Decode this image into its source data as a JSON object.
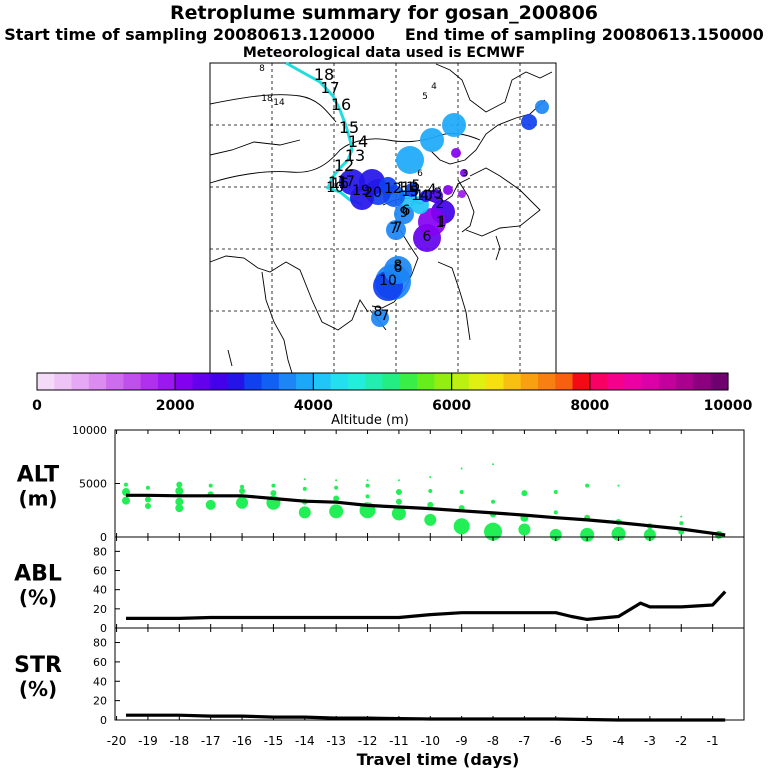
{
  "header": {
    "title": "Retroplume summary for gosan_200806",
    "start_label": "Start time of sampling 20080613.120000",
    "end_label": "End time of sampling 20080613.150000",
    "met_label": "Meteorological data used is ECMWF"
  },
  "colors": {
    "alt_dots": "#22ee55",
    "line": "#000000",
    "track": "#22dddd",
    "scale": [
      "#f4dcf8",
      "#eec4f6",
      "#e6a8f4",
      "#dc8cf0",
      "#ce6cee",
      "#c050ec",
      "#b030ee",
      "#9c18f0",
      "#8400f0",
      "#6400ee",
      "#4400ea",
      "#2414ea",
      "#1040f0",
      "#1060f4",
      "#1c86f6",
      "#1ca8f8",
      "#20c6f8",
      "#22e0f0",
      "#22eedc",
      "#22eeb0",
      "#22ee84",
      "#3aee48",
      "#66ee1c",
      "#92ee10",
      "#bcf010",
      "#e0f010",
      "#f6e010",
      "#f8c010",
      "#f8a010",
      "#f88010",
      "#f86010",
      "#f40a14",
      "#f80064",
      "#f4008c",
      "#ec00a4",
      "#dc00a8",
      "#c4009c",
      "#aa0090",
      "#8c0080",
      "#6e0070"
    ]
  },
  "colorbar": {
    "ticks": [
      "0",
      "2000",
      "4000",
      "6000",
      "8000",
      "10000"
    ],
    "label": "Altitude (m)"
  },
  "map_labels": [
    {
      "t": "8",
      "c": "#22dddd"
    },
    {
      "t": "18",
      "c": "#000"
    },
    {
      "t": "17",
      "c": "#000"
    },
    {
      "t": "16",
      "c": "#000"
    },
    {
      "t": "15",
      "c": "#000"
    },
    {
      "t": "14",
      "c": "#000"
    },
    {
      "t": "13",
      "c": "#000"
    },
    {
      "t": "12",
      "c": "#000"
    },
    {
      "t": "11",
      "c": "#000"
    },
    {
      "t": "10",
      "c": "#000"
    },
    {
      "t": "18",
      "c": "#22dddd"
    },
    {
      "t": "14",
      "c": "#22dddd"
    },
    {
      "t": "4",
      "c": "#22dddd"
    },
    {
      "t": "5",
      "c": "#22dddd"
    },
    {
      "t": "6",
      "c": "#22dddd"
    },
    {
      "t": "3",
      "c": "#22dddd"
    }
  ],
  "plume_labels": [
    "20",
    "19",
    "17",
    "16",
    "15",
    "14",
    "13",
    "12",
    "11",
    "10",
    "9",
    "8",
    "7",
    "6",
    "5",
    "4",
    "3",
    "2",
    "1",
    "6",
    "7",
    "6",
    "1",
    "7",
    "8",
    "10"
  ],
  "chart_data": [
    {
      "type": "line",
      "name": "ALT",
      "ylabel": "ALT",
      "yunit": "(m)",
      "ylim": [
        0,
        10000
      ],
      "yticks": [
        "0",
        "5000",
        "10000"
      ],
      "x": [
        -19.7,
        -19,
        -18,
        -17,
        -16,
        -15,
        -14,
        -13,
        -12,
        -11,
        -10,
        -9,
        -8,
        -7,
        -6,
        -5,
        -4,
        -3,
        -2,
        -1,
        -0.6
      ],
      "values": [
        3900,
        3900,
        3850,
        3850,
        3850,
        3600,
        3350,
        3250,
        2950,
        2800,
        2650,
        2450,
        2250,
        2050,
        1800,
        1600,
        1350,
        1050,
        750,
        350,
        200
      ],
      "scatter": [
        {
          "x": -19.7,
          "y": 4900,
          "r": 2
        },
        {
          "x": -19.7,
          "y": 4200,
          "r": 4
        },
        {
          "x": -19.7,
          "y": 3400,
          "r": 4
        },
        {
          "x": -19,
          "y": 4600,
          "r": 2
        },
        {
          "x": -19,
          "y": 3500,
          "r": 3
        },
        {
          "x": -19,
          "y": 2900,
          "r": 3
        },
        {
          "x": -18,
          "y": 4900,
          "r": 3
        },
        {
          "x": -18,
          "y": 4300,
          "r": 4
        },
        {
          "x": -18,
          "y": 3300,
          "r": 4
        },
        {
          "x": -18,
          "y": 2700,
          "r": 4
        },
        {
          "x": -17,
          "y": 4800,
          "r": 2
        },
        {
          "x": -17,
          "y": 4000,
          "r": 3
        },
        {
          "x": -17,
          "y": 3000,
          "r": 5
        },
        {
          "x": -16,
          "y": 4700,
          "r": 2
        },
        {
          "x": -16,
          "y": 4300,
          "r": 3
        },
        {
          "x": -16,
          "y": 3200,
          "r": 6
        },
        {
          "x": -15,
          "y": 4800,
          "r": 2
        },
        {
          "x": -15,
          "y": 4100,
          "r": 3
        },
        {
          "x": -15,
          "y": 3200,
          "r": 7
        },
        {
          "x": -14,
          "y": 5400,
          "r": 1
        },
        {
          "x": -14,
          "y": 4500,
          "r": 2
        },
        {
          "x": -14,
          "y": 3300,
          "r": 3
        },
        {
          "x": -14,
          "y": 2300,
          "r": 6
        },
        {
          "x": -13,
          "y": 5300,
          "r": 1
        },
        {
          "x": -13,
          "y": 4600,
          "r": 2
        },
        {
          "x": -13,
          "y": 3600,
          "r": 3
        },
        {
          "x": -13,
          "y": 2400,
          "r": 7
        },
        {
          "x": -12,
          "y": 5300,
          "r": 1
        },
        {
          "x": -12,
          "y": 4800,
          "r": 2
        },
        {
          "x": -12,
          "y": 3800,
          "r": 2
        },
        {
          "x": -12,
          "y": 2500,
          "r": 8
        },
        {
          "x": -11,
          "y": 5300,
          "r": 1
        },
        {
          "x": -11,
          "y": 4200,
          "r": 3
        },
        {
          "x": -11,
          "y": 3300,
          "r": 3
        },
        {
          "x": -11,
          "y": 2200,
          "r": 7
        },
        {
          "x": -10,
          "y": 5600,
          "r": 1
        },
        {
          "x": -10,
          "y": 4300,
          "r": 2
        },
        {
          "x": -10,
          "y": 3000,
          "r": 3
        },
        {
          "x": -10,
          "y": 1600,
          "r": 6
        },
        {
          "x": -9,
          "y": 6400,
          "r": 1
        },
        {
          "x": -9,
          "y": 4200,
          "r": 2
        },
        {
          "x": -9,
          "y": 2700,
          "r": 3
        },
        {
          "x": -9,
          "y": 1000,
          "r": 8
        },
        {
          "x": -8,
          "y": 6800,
          "r": 1
        },
        {
          "x": -8,
          "y": 3300,
          "r": 2
        },
        {
          "x": -8,
          "y": 2100,
          "r": 3
        },
        {
          "x": -8,
          "y": 500,
          "r": 9
        },
        {
          "x": -7,
          "y": 4100,
          "r": 3
        },
        {
          "x": -7,
          "y": 1800,
          "r": 4
        },
        {
          "x": -7,
          "y": 700,
          "r": 6
        },
        {
          "x": -6,
          "y": 4200,
          "r": 2
        },
        {
          "x": -6,
          "y": 2300,
          "r": 2
        },
        {
          "x": -6,
          "y": 200,
          "r": 6
        },
        {
          "x": -5,
          "y": 4800,
          "r": 2
        },
        {
          "x": -5,
          "y": 1800,
          "r": 3
        },
        {
          "x": -5,
          "y": 200,
          "r": 7
        },
        {
          "x": -4,
          "y": 4800,
          "r": 1
        },
        {
          "x": -4,
          "y": 1400,
          "r": 3
        },
        {
          "x": -4,
          "y": 300,
          "r": 7
        },
        {
          "x": -3,
          "y": 1000,
          "r": 3
        },
        {
          "x": -3,
          "y": 200,
          "r": 6
        },
        {
          "x": -2,
          "y": 1900,
          "r": 1
        },
        {
          "x": -2,
          "y": 1300,
          "r": 2
        },
        {
          "x": -2,
          "y": 500,
          "r": 3
        },
        {
          "x": -0.8,
          "y": 200,
          "r": 4
        }
      ]
    },
    {
      "type": "line",
      "name": "ABL",
      "ylabel": "ABL",
      "yunit": "(%)",
      "ylim": [
        0,
        95
      ],
      "yticks": [
        "0",
        "20",
        "40",
        "60",
        "80"
      ],
      "x": [
        -19.7,
        -19,
        -18,
        -17,
        -16,
        -15,
        -14,
        -13,
        -12,
        -11,
        -10,
        -9,
        -8,
        -7,
        -6,
        -5.5,
        -5,
        -4,
        -3.3,
        -3,
        -2,
        -1,
        -0.6
      ],
      "values": [
        10,
        10,
        10,
        11,
        11,
        11,
        11,
        11,
        11,
        11,
        14,
        16,
        16,
        16,
        16,
        12,
        9,
        12,
        26,
        22,
        22,
        24,
        38
      ]
    },
    {
      "type": "line",
      "name": "STR",
      "ylabel": "STR",
      "yunit": "(%)",
      "ylim": [
        0,
        95
      ],
      "yticks": [
        "0",
        "20",
        "40",
        "60",
        "80"
      ],
      "x": [
        -19.7,
        -18,
        -17,
        -16,
        -15,
        -14,
        -13,
        -12,
        -10,
        -8,
        -6,
        -4,
        -2,
        -1,
        -0.6
      ],
      "values": [
        5,
        5,
        4,
        4,
        3,
        3,
        2,
        2,
        1,
        1,
        1,
        0,
        0,
        0,
        0
      ]
    }
  ],
  "xaxis": {
    "ticks": [
      -20,
      -19,
      -18,
      -17,
      -16,
      -15,
      -14,
      -13,
      -12,
      -11,
      -10,
      -9,
      -8,
      -7,
      -6,
      -5,
      -4,
      -3,
      -2,
      -1
    ],
    "tick_labels": [
      "-20",
      "-19",
      "-18",
      "-17",
      "-16",
      "-15",
      "-14",
      "-13",
      "-12",
      "-11",
      "-10",
      "-9",
      "-8",
      "-7",
      "-6",
      "-5",
      "-4",
      "-3",
      "-2",
      "-1"
    ],
    "label": "Travel time (days)",
    "xlim": [
      -20.05,
      0
    ]
  }
}
